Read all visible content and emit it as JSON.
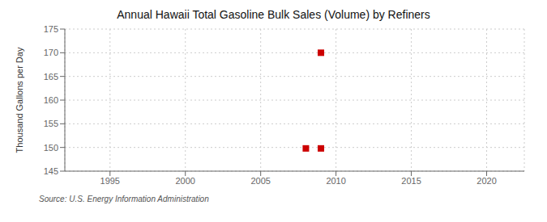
{
  "chart_data": {
    "type": "scatter",
    "title": "Annual Hawaii Total Gasoline Bulk Sales (Volume) by Refiners",
    "y_label": "Thousand Gallons per Day",
    "source": "Source: U.S. Energy Information Administration",
    "x": [
      2008,
      2009,
      2009
    ],
    "values": [
      149.8,
      149.8,
      170.0
    ],
    "color": "#cc0000",
    "marker": "square",
    "xlim": [
      1992,
      2022.5
    ],
    "xticks": [
      1995,
      2000,
      2005,
      2010,
      2015,
      2020
    ],
    "ylim": [
      145,
      175
    ],
    "yticks": [
      145,
      150,
      155,
      160,
      165,
      170,
      175
    ],
    "grid": true
  }
}
